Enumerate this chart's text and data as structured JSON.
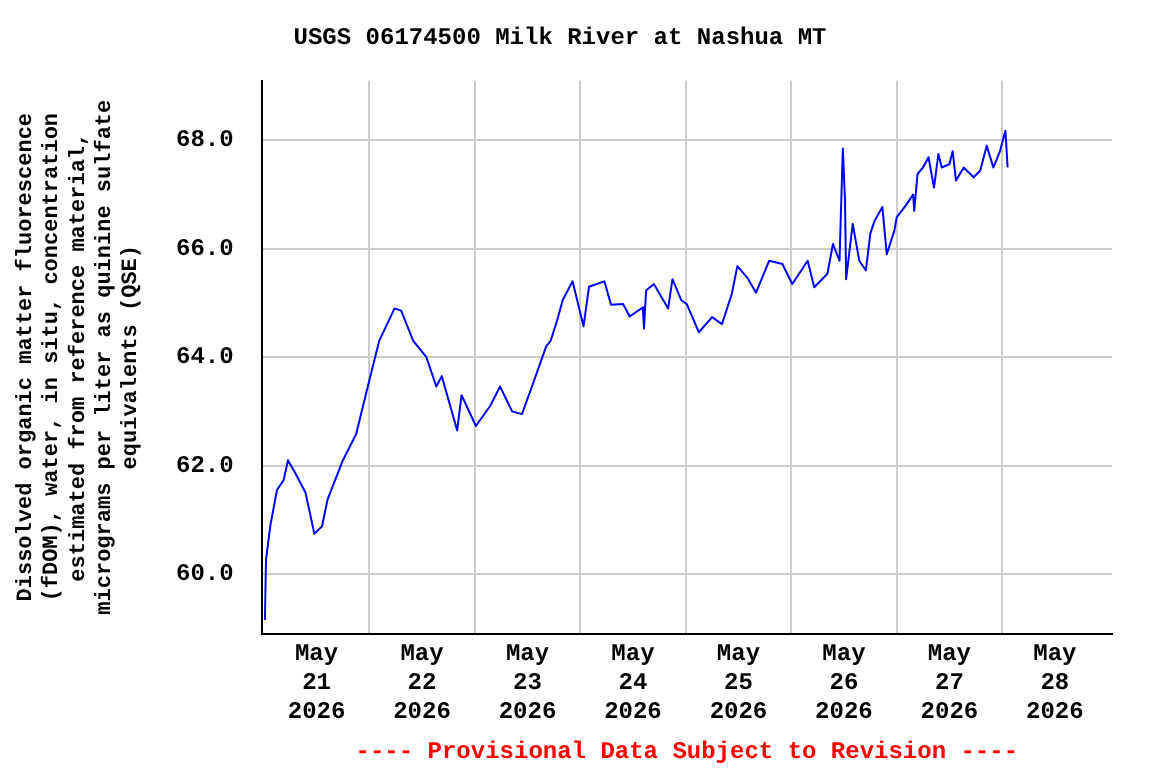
{
  "chart_data": {
    "type": "line",
    "title": "USGS 06174500 Milk River at Nashua MT",
    "ylabel": "Dissolved organic matter fluorescence (fDOM), water, in situ, concentration estimated from reference material, micrograms per liter as quinine sulfate equivalents (QSE)",
    "annotations": [
      "---- Provisional Data Subject to Revision ----"
    ],
    "x": [
      "2026-05-21T00:15",
      "2026-05-21T00:30",
      "2026-05-21T01:30",
      "2026-05-21T03:00",
      "2026-05-21T04:30",
      "2026-05-21T05:30",
      "2026-05-21T07:15",
      "2026-05-21T09:30",
      "2026-05-21T11:30",
      "2026-05-21T13:15",
      "2026-05-21T14:30",
      "2026-05-21T18:00",
      "2026-05-21T21:00",
      "2026-05-22T00:00",
      "2026-05-22T02:15",
      "2026-05-22T05:45",
      "2026-05-22T07:15",
      "2026-05-22T10:00",
      "2026-05-22T13:00",
      "2026-05-22T15:15",
      "2026-05-22T16:30",
      "2026-05-22T20:00",
      "2026-05-22T21:00",
      "2026-05-23T00:15",
      "2026-05-23T03:30",
      "2026-05-23T05:45",
      "2026-05-23T08:30",
      "2026-05-23T10:45",
      "2026-05-23T13:30",
      "2026-05-23T16:15",
      "2026-05-23T17:15",
      "2026-05-23T18:45",
      "2026-05-23T20:00",
      "2026-05-23T22:15",
      "2026-05-24T00:45",
      "2026-05-24T02:00",
      "2026-05-24T05:30",
      "2026-05-24T07:00",
      "2026-05-24T09:45",
      "2026-05-24T11:15",
      "2026-05-24T14:15",
      "2026-05-24T14:30",
      "2026-05-24T15:00",
      "2026-05-24T16:45",
      "2026-05-24T20:00",
      "2026-05-24T21:00",
      "2026-05-24T23:00",
      "2026-05-25T00:15",
      "2026-05-25T03:00",
      "2026-05-25T06:00",
      "2026-05-25T08:15",
      "2026-05-25T10:30",
      "2026-05-25T11:45",
      "2026-05-25T14:00",
      "2026-05-25T16:00",
      "2026-05-25T19:00",
      "2026-05-25T22:00",
      "2026-05-26T00:15",
      "2026-05-26T03:45",
      "2026-05-26T05:15",
      "2026-05-26T08:15",
      "2026-05-26T09:30",
      "2026-05-26T11:00",
      "2026-05-26T11:45",
      "2026-05-26T12:15",
      "2026-05-26T12:30",
      "2026-05-26T14:00",
      "2026-05-26T15:30",
      "2026-05-26T17:00",
      "2026-05-26T18:00",
      "2026-05-26T19:00",
      "2026-05-26T20:45",
      "2026-05-26T21:45",
      "2026-05-26T23:30",
      "2026-05-27T00:00",
      "2026-05-27T02:15",
      "2026-05-27T03:45",
      "2026-05-27T04:00",
      "2026-05-27T04:45",
      "2026-05-27T06:00",
      "2026-05-27T07:15",
      "2026-05-27T08:30",
      "2026-05-27T09:30",
      "2026-05-27T10:15",
      "2026-05-27T12:00",
      "2026-05-27T12:45",
      "2026-05-27T13:30",
      "2026-05-27T15:15",
      "2026-05-27T17:30",
      "2026-05-27T19:00",
      "2026-05-27T20:30",
      "2026-05-27T22:00",
      "2026-05-27T23:30",
      "2026-05-28T00:45",
      "2026-05-28T01:15"
    ],
    "series": [
      {
        "color": "#0000ff",
        "values": [
          59.15,
          60.26,
          60.9,
          61.55,
          61.73,
          62.1,
          61.85,
          61.5,
          60.74,
          60.88,
          61.37,
          62.1,
          62.58,
          63.57,
          64.3,
          64.9,
          64.86,
          64.3,
          64.0,
          63.46,
          63.65,
          62.65,
          63.3,
          62.73,
          63.1,
          63.46,
          63.0,
          62.95,
          63.57,
          64.2,
          64.3,
          64.68,
          65.05,
          65.4,
          64.57,
          65.3,
          65.4,
          64.97,
          64.98,
          64.75,
          64.92,
          64.53,
          65.23,
          65.35,
          64.9,
          65.44,
          65.05,
          64.98,
          64.46,
          64.74,
          64.61,
          65.17,
          65.68,
          65.47,
          65.19,
          65.78,
          65.72,
          65.35,
          65.78,
          65.29,
          65.54,
          66.09,
          65.78,
          67.85,
          66.89,
          65.44,
          66.46,
          65.78,
          65.6,
          66.28,
          66.52,
          66.77,
          65.9,
          66.34,
          66.58,
          66.82,
          67.0,
          66.7,
          67.38,
          67.5,
          67.69,
          67.13,
          67.75,
          67.5,
          67.56,
          67.8,
          67.26,
          67.5,
          67.32,
          67.44,
          67.9,
          67.5,
          67.8,
          68.18,
          67.5
        ]
      }
    ],
    "xlim": [
      "2026-05-20T23:30",
      "2026-05-29T01:00"
    ],
    "xticks": [
      {
        "value": "2026-05-21T12:00",
        "label": "May 21 2026"
      },
      {
        "value": "2026-05-22T00:00",
        "label": null
      },
      {
        "value": "2026-05-22T12:00",
        "label": "May 22 2026"
      },
      {
        "value": "2026-05-23T00:00",
        "label": null
      },
      {
        "value": "2026-05-23T12:00",
        "label": "May 23 2026"
      },
      {
        "value": "2026-05-24T00:00",
        "label": null
      },
      {
        "value": "2026-05-24T12:00",
        "label": "May 24 2026"
      },
      {
        "value": "2026-05-25T00:00",
        "label": null
      },
      {
        "value": "2026-05-25T12:00",
        "label": "May 25 2026"
      },
      {
        "value": "2026-05-26T00:00",
        "label": null
      },
      {
        "value": "2026-05-26T12:00",
        "label": "May 26 2026"
      },
      {
        "value": "2026-05-27T00:00",
        "label": null
      },
      {
        "value": "2026-05-27T12:00",
        "label": "May 27 2026"
      },
      {
        "value": "2026-05-28T00:00",
        "label": null
      },
      {
        "value": "2026-05-28T12:00",
        "label": "May 28 2026"
      }
    ],
    "ylim": [
      58.9,
      69.1
    ],
    "yticks": [
      {
        "value": 60,
        "label": "60.0"
      },
      {
        "value": 62,
        "label": "62.0"
      },
      {
        "value": 64,
        "label": "64.0"
      },
      {
        "value": 66,
        "label": "66.0"
      },
      {
        "value": 68,
        "label": "68.0"
      }
    ],
    "grid": true,
    "legend": false,
    "marker": "none",
    "line_style": "solid"
  }
}
